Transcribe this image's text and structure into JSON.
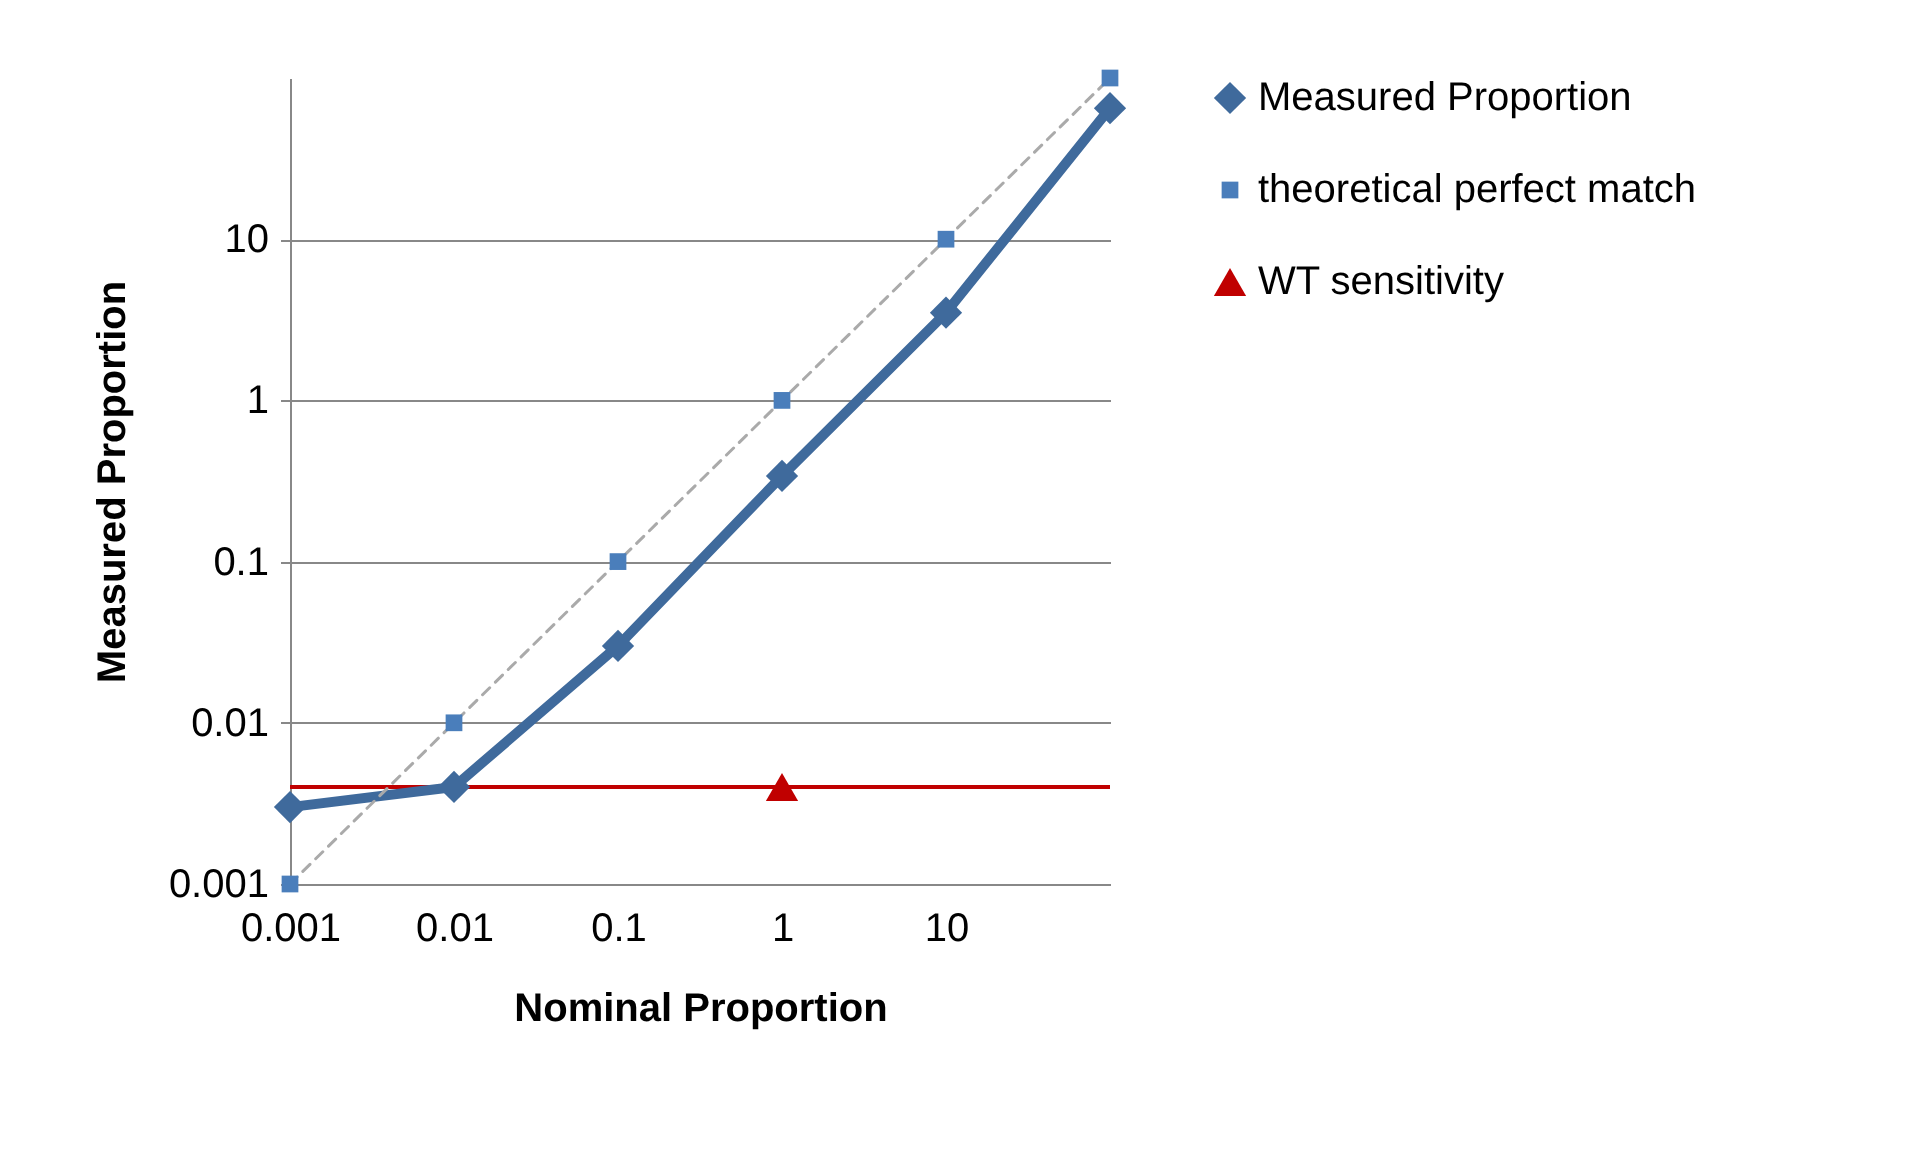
{
  "chart_data": {
    "type": "line",
    "xlabel": "Nominal Proportion",
    "ylabel": "Measured Proportion",
    "categories": [
      "0.001",
      "0.01",
      "0.1",
      "1",
      "10",
      null
    ],
    "series": [
      {
        "name": "Measured Proportion",
        "type": "line",
        "color": "#3f6a9c",
        "marker": "diamond",
        "line_style": "solid",
        "values": [
          0.003,
          0.004,
          0.03,
          0.34,
          3.5,
          65
        ]
      },
      {
        "name": "theoretical perfect match",
        "type": "line",
        "color": "#4a7ebb",
        "marker": "square",
        "line_style": "dashed",
        "values": [
          0.001,
          0.01,
          0.1,
          1,
          10,
          100
        ]
      },
      {
        "name": "WT sensitivity",
        "type": "scatter",
        "color": "#c00000",
        "marker": "triangle",
        "values": [
          null,
          null,
          null,
          0.004,
          null,
          null
        ]
      }
    ],
    "ref_lines": [
      {
        "axis": "y",
        "value": 0.004,
        "color": "#c00000"
      }
    ],
    "log": "y",
    "ylim": [
      0.001,
      100
    ],
    "yticks": [
      0.001,
      0.01,
      0.1,
      1,
      10
    ],
    "grid": "y",
    "legend": "right"
  }
}
